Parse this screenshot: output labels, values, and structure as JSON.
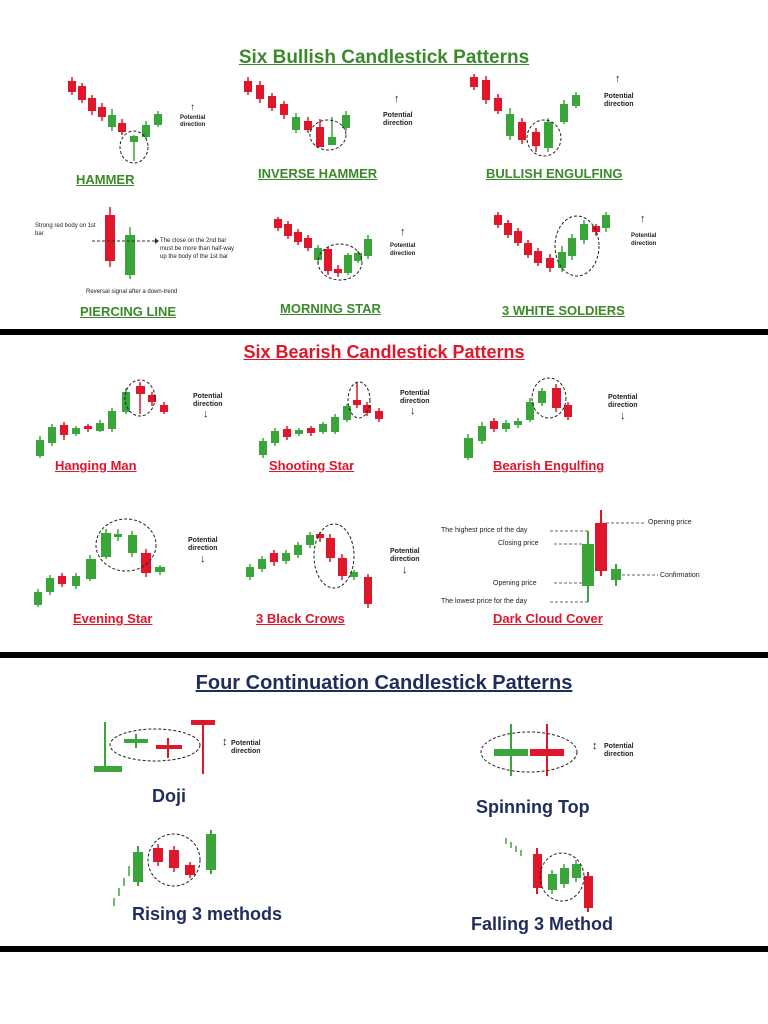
{
  "colors": {
    "green": "#3aa63a",
    "red": "#e0162b",
    "navy": "#1f2d5c",
    "bullish_title": "#3a8a2a",
    "bearish_title": "#e0162b",
    "black": "#000000"
  },
  "bullish": {
    "title": "Six Bullish Candlestick Patterns",
    "patterns": [
      {
        "label": "HAMMER",
        "note": "Potential direction",
        "arrow": "↑"
      },
      {
        "label": "INVERSE HAMMER",
        "note": "Potential direction",
        "arrow": "↑"
      },
      {
        "label": "BULLISH ENGULFING",
        "note": "Potential direction",
        "arrow": "↑"
      },
      {
        "label": "PIERCING LINE",
        "note_left": "Strong red body on 1st bar",
        "note_right": "The close on the 2nd bar must be more than half-way up the body of the 1st bar",
        "note_bottom": "Reversal signal after a down-trend"
      },
      {
        "label": "MORNING STAR",
        "note": "Potential direction",
        "arrow": "↑"
      },
      {
        "label": "3 WHITE SOLDIERS",
        "note": "Potential direction",
        "arrow": "↑"
      }
    ]
  },
  "bearish": {
    "title": "Six Bearish Candlestick Patterns",
    "patterns": [
      {
        "label": "Hanging Man",
        "note": "Potential direction",
        "arrow": "↓"
      },
      {
        "label": "Shooting Star",
        "note": "Potential direction",
        "arrow": "↓"
      },
      {
        "label": "Bearish Engulfing",
        "note": "Potential direction",
        "arrow": "↓"
      },
      {
        "label": "Evening Star",
        "note": "Potential direction",
        "arrow": "↓"
      },
      {
        "label": "3 Black Crows",
        "note": "Potential direction",
        "arrow": "↓"
      },
      {
        "label": "Dark Cloud Cover",
        "left_labels": [
          "The highest price of the day",
          "Closing price",
          "Opening price",
          "The lowest price for the day"
        ],
        "right_labels": [
          "Opening price",
          "Confirmation"
        ]
      }
    ]
  },
  "continuation": {
    "title": "Four Continuation Candlestick Patterns",
    "patterns": [
      {
        "label": "Doji",
        "note": "Potential direction",
        "arrow": "↕"
      },
      {
        "label": "Spinning Top",
        "note": "Potential direction",
        "arrow": "↕"
      },
      {
        "label": "Rising 3 methods"
      },
      {
        "label": "Falling 3 Method"
      }
    ]
  }
}
